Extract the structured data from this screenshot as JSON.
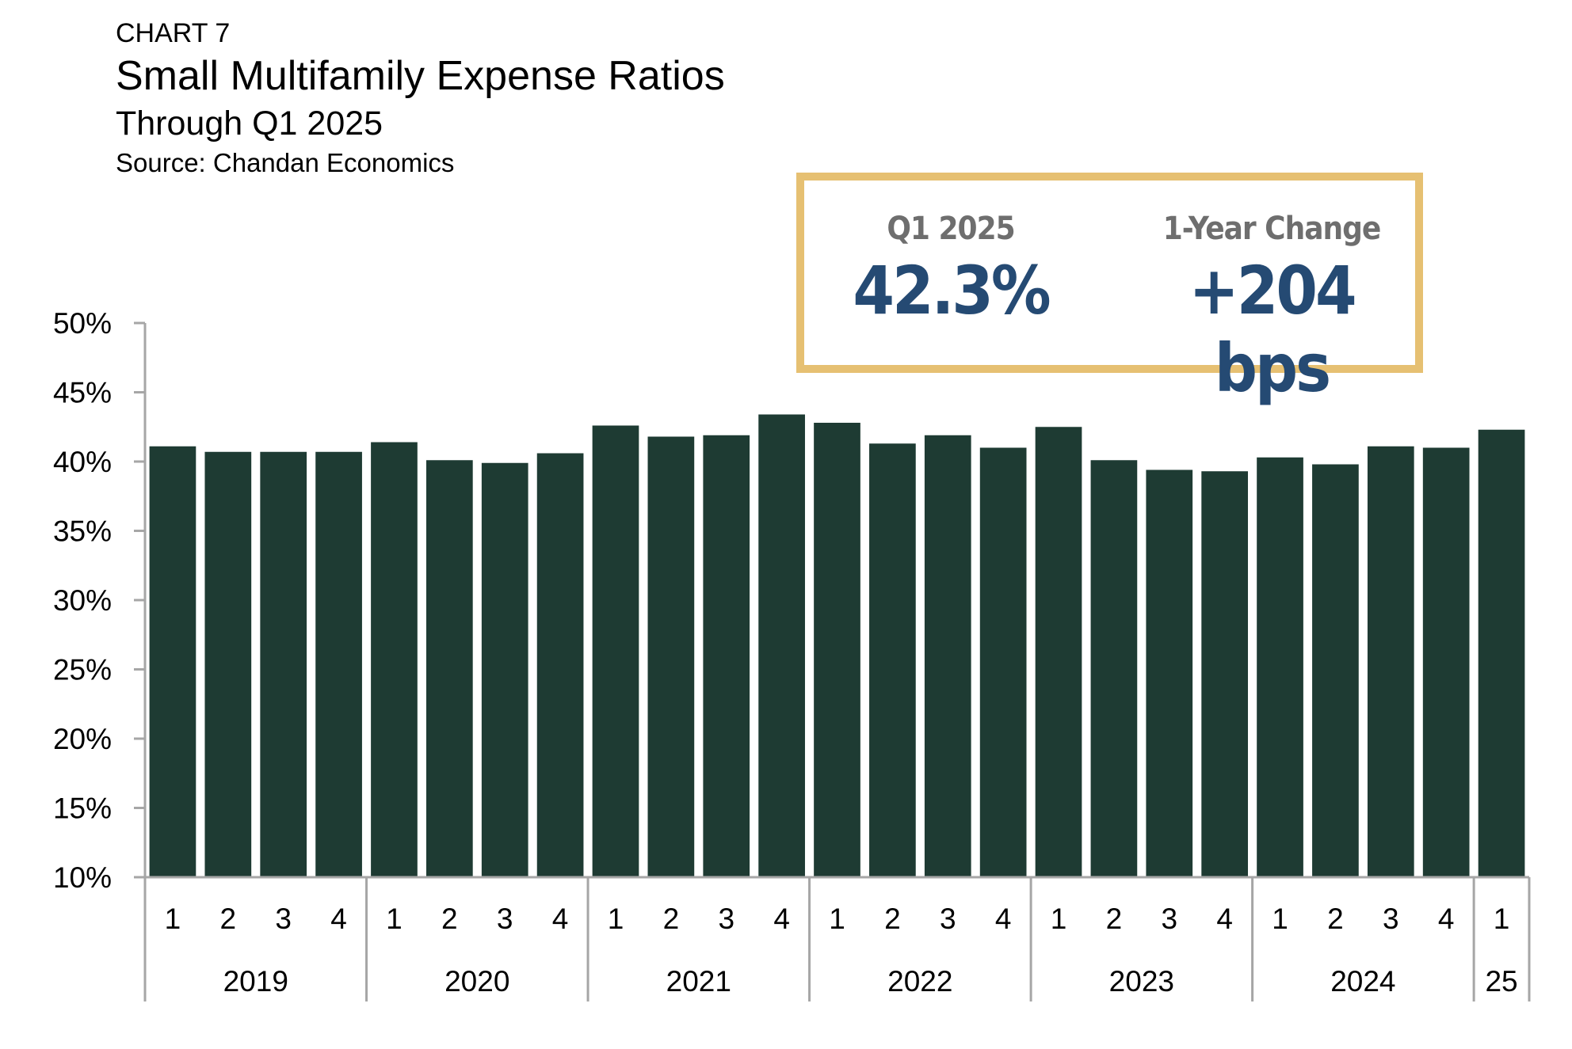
{
  "header": {
    "kicker": "CHART 7",
    "title": "Small Multifamily Expense Ratios",
    "subtitle": "Through Q1 2025",
    "source": "Source: Chandan Economics"
  },
  "callout": {
    "left_label": "Q1 2025",
    "left_value": "42.3%",
    "right_label": "1-Year Change",
    "right_value": "+204 bps",
    "border_color": "#e6c072",
    "value_color": "#254a73"
  },
  "chart_data": {
    "type": "bar",
    "title": "Small Multifamily Expense Ratios",
    "subtitle": "Through Q1 2025",
    "source": "Source: Chandan Economics",
    "categories": [
      "1",
      "2",
      "3",
      "4",
      "1",
      "2",
      "3",
      "4",
      "1",
      "2",
      "3",
      "4",
      "1",
      "2",
      "3",
      "4",
      "1",
      "2",
      "3",
      "4",
      "1",
      "2",
      "3",
      "4",
      "1"
    ],
    "groups": [
      {
        "label": "2019",
        "count": 4
      },
      {
        "label": "2020",
        "count": 4
      },
      {
        "label": "2021",
        "count": 4
      },
      {
        "label": "2022",
        "count": 4
      },
      {
        "label": "2023",
        "count": 4
      },
      {
        "label": "2024",
        "count": 4
      },
      {
        "label": "25",
        "count": 1
      }
    ],
    "values": [
      41.1,
      40.7,
      40.7,
      40.7,
      41.4,
      40.1,
      39.9,
      40.6,
      42.6,
      41.8,
      41.9,
      43.4,
      42.8,
      41.3,
      41.9,
      41.0,
      42.5,
      40.1,
      39.4,
      39.3,
      40.3,
      39.8,
      41.1,
      41.0,
      42.3
    ],
    "ylim": [
      10,
      50
    ],
    "yticks": [
      10,
      15,
      20,
      25,
      30,
      35,
      40,
      45,
      50
    ],
    "ytick_labels": [
      "10%",
      "15%",
      "20%",
      "25%",
      "30%",
      "35%",
      "40%",
      "45%",
      "50%"
    ],
    "bar_color": "#1e3b33",
    "axis_color": "#a6a6a6",
    "grid": false
  }
}
